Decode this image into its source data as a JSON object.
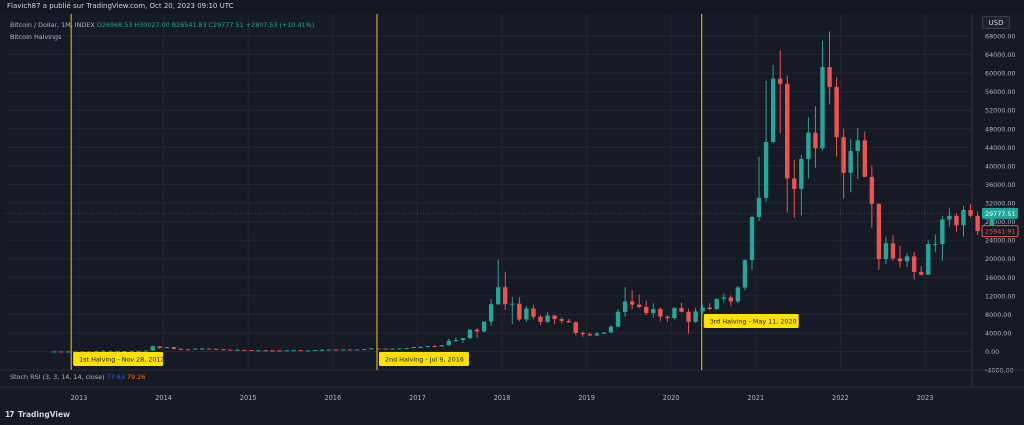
{
  "header": {
    "publisher_line": "Flavich87 a publié sur TradingView.com, Oct 20, 2023 09:10 UTC"
  },
  "legend": {
    "symbol": "Bitcoin / Dollar, 1M, INDEX",
    "open_label": "O",
    "open": "26968.53",
    "high_label": "H",
    "high": "30027.00",
    "low_label": "B",
    "low": "26541.83",
    "close_label": "C",
    "close": "29777.51",
    "change": "+2807.53 (+10.41%)",
    "indicator": "Bitcoin Halvings"
  },
  "currency": "USD",
  "stoch": {
    "label": "Stoch RSI (3, 3, 14, 14, close)",
    "k": "77.63",
    "d": "79.26"
  },
  "branding": "TradingView",
  "colors": {
    "background": "#161a25",
    "up": "#26a69a",
    "down": "#ef5350",
    "halving_line": "#f5c518",
    "halving_label_bg": "#ffe100",
    "grid": "#232733",
    "price_badge_up": "#26a69a",
    "price_badge_down": "#ef5350"
  },
  "chart_data": {
    "type": "candlestick",
    "price_labels": [
      "68000.00",
      "64000.00",
      "60000.00",
      "56000.00",
      "52000.00",
      "48000.00",
      "44000.00",
      "40000.00",
      "36000.00",
      "32000.00",
      "28000.00",
      "24000.00",
      "20000.00",
      "16000.00",
      "12000.00",
      "8000.00",
      "4000.00",
      "0.00",
      "-4000.00"
    ],
    "price_range": [
      -4000,
      70000
    ],
    "x_labels": [
      "2013",
      "2014",
      "2015",
      "2016",
      "2017",
      "2018",
      "2019",
      "2020",
      "2021",
      "2022",
      "2023"
    ],
    "last_price": "29777.51",
    "secondary_price": "25941.91",
    "halvings": [
      {
        "label": "1st Halving - Nov 28, 2012",
        "date": "2012-11-28"
      },
      {
        "label": "2nd Halving - Jul 9, 2016",
        "date": "2016-07-09"
      },
      {
        "label": "3rd Halving - May 11, 2020",
        "date": "2020-05-11"
      }
    ],
    "candles": [
      {
        "date": "2012-09",
        "o": 10,
        "h": 13,
        "l": 9,
        "c": 12
      },
      {
        "date": "2012-10",
        "o": 12,
        "h": 13,
        "l": 10,
        "c": 11
      },
      {
        "date": "2012-11",
        "o": 11,
        "h": 13,
        "l": 10,
        "c": 12
      },
      {
        "date": "2012-12",
        "o": 12,
        "h": 14,
        "l": 12,
        "c": 13
      },
      {
        "date": "2013-01",
        "o": 13,
        "h": 21,
        "l": 13,
        "c": 20
      },
      {
        "date": "2013-02",
        "o": 20,
        "h": 35,
        "l": 20,
        "c": 33
      },
      {
        "date": "2013-03",
        "o": 33,
        "h": 95,
        "l": 33,
        "c": 93
      },
      {
        "date": "2013-04",
        "o": 93,
        "h": 266,
        "l": 50,
        "c": 139
      },
      {
        "date": "2013-05",
        "o": 139,
        "h": 140,
        "l": 82,
        "c": 128
      },
      {
        "date": "2013-06",
        "o": 128,
        "h": 130,
        "l": 88,
        "c": 97
      },
      {
        "date": "2013-07",
        "o": 97,
        "h": 110,
        "l": 66,
        "c": 106
      },
      {
        "date": "2013-08",
        "o": 106,
        "h": 136,
        "l": 100,
        "c": 135
      },
      {
        "date": "2013-09",
        "o": 135,
        "h": 145,
        "l": 110,
        "c": 133
      },
      {
        "date": "2013-10",
        "o": 133,
        "h": 210,
        "l": 110,
        "c": 205
      },
      {
        "date": "2013-11",
        "o": 205,
        "h": 1242,
        "l": 205,
        "c": 1120
      },
      {
        "date": "2013-12",
        "o": 1120,
        "h": 1150,
        "l": 520,
        "c": 800
      },
      {
        "date": "2014-01",
        "o": 800,
        "h": 1000,
        "l": 750,
        "c": 935
      },
      {
        "date": "2014-02",
        "o": 935,
        "h": 950,
        "l": 420,
        "c": 570
      },
      {
        "date": "2014-03",
        "o": 570,
        "h": 700,
        "l": 440,
        "c": 460
      },
      {
        "date": "2014-04",
        "o": 460,
        "h": 520,
        "l": 340,
        "c": 445
      },
      {
        "date": "2014-05",
        "o": 445,
        "h": 630,
        "l": 420,
        "c": 630
      },
      {
        "date": "2014-06",
        "o": 630,
        "h": 680,
        "l": 540,
        "c": 640
      },
      {
        "date": "2014-07",
        "o": 640,
        "h": 660,
        "l": 570,
        "c": 585
      },
      {
        "date": "2014-08",
        "o": 585,
        "h": 600,
        "l": 450,
        "c": 480
      },
      {
        "date": "2014-09",
        "o": 480,
        "h": 490,
        "l": 350,
        "c": 390
      },
      {
        "date": "2014-10",
        "o": 390,
        "h": 420,
        "l": 280,
        "c": 340
      },
      {
        "date": "2014-11",
        "o": 340,
        "h": 460,
        "l": 320,
        "c": 375
      },
      {
        "date": "2014-12",
        "o": 375,
        "h": 400,
        "l": 300,
        "c": 320
      },
      {
        "date": "2015-01",
        "o": 320,
        "h": 320,
        "l": 160,
        "c": 217
      },
      {
        "date": "2015-02",
        "o": 217,
        "h": 270,
        "l": 200,
        "c": 254
      },
      {
        "date": "2015-03",
        "o": 254,
        "h": 300,
        "l": 235,
        "c": 244
      },
      {
        "date": "2015-04",
        "o": 244,
        "h": 260,
        "l": 215,
        "c": 236
      },
      {
        "date": "2015-05",
        "o": 236,
        "h": 250,
        "l": 225,
        "c": 230
      },
      {
        "date": "2015-06",
        "o": 230,
        "h": 270,
        "l": 220,
        "c": 263
      },
      {
        "date": "2015-07",
        "o": 263,
        "h": 320,
        "l": 255,
        "c": 284
      },
      {
        "date": "2015-08",
        "o": 284,
        "h": 290,
        "l": 200,
        "c": 230
      },
      {
        "date": "2015-09",
        "o": 230,
        "h": 245,
        "l": 225,
        "c": 236
      },
      {
        "date": "2015-10",
        "o": 236,
        "h": 330,
        "l": 235,
        "c": 314
      },
      {
        "date": "2015-11",
        "o": 314,
        "h": 500,
        "l": 300,
        "c": 378
      },
      {
        "date": "2015-12",
        "o": 378,
        "h": 470,
        "l": 350,
        "c": 430
      },
      {
        "date": "2016-01",
        "o": 430,
        "h": 460,
        "l": 350,
        "c": 368
      },
      {
        "date": "2016-02",
        "o": 368,
        "h": 440,
        "l": 365,
        "c": 437
      },
      {
        "date": "2016-03",
        "o": 437,
        "h": 440,
        "l": 400,
        "c": 416
      },
      {
        "date": "2016-04",
        "o": 416,
        "h": 470,
        "l": 415,
        "c": 448
      },
      {
        "date": "2016-05",
        "o": 448,
        "h": 550,
        "l": 440,
        "c": 530
      },
      {
        "date": "2016-06",
        "o": 530,
        "h": 780,
        "l": 520,
        "c": 673
      },
      {
        "date": "2016-07",
        "o": 673,
        "h": 680,
        "l": 610,
        "c": 624
      },
      {
        "date": "2016-08",
        "o": 624,
        "h": 630,
        "l": 480,
        "c": 573
      },
      {
        "date": "2016-09",
        "o": 573,
        "h": 620,
        "l": 570,
        "c": 609
      },
      {
        "date": "2016-10",
        "o": 609,
        "h": 720,
        "l": 600,
        "c": 700
      },
      {
        "date": "2016-11",
        "o": 700,
        "h": 750,
        "l": 690,
        "c": 745
      },
      {
        "date": "2016-12",
        "o": 745,
        "h": 975,
        "l": 740,
        "c": 960
      },
      {
        "date": "2017-01",
        "o": 960,
        "h": 1160,
        "l": 750,
        "c": 970
      },
      {
        "date": "2017-02",
        "o": 970,
        "h": 1200,
        "l": 920,
        "c": 1190
      },
      {
        "date": "2017-03",
        "o": 1190,
        "h": 1350,
        "l": 890,
        "c": 1080
      },
      {
        "date": "2017-04",
        "o": 1080,
        "h": 1360,
        "l": 1060,
        "c": 1350
      },
      {
        "date": "2017-05",
        "o": 1350,
        "h": 2750,
        "l": 1350,
        "c": 2300
      },
      {
        "date": "2017-06",
        "o": 2300,
        "h": 3000,
        "l": 2100,
        "c": 2480
      },
      {
        "date": "2017-07",
        "o": 2480,
        "h": 2950,
        "l": 1830,
        "c": 2870
      },
      {
        "date": "2017-08",
        "o": 2870,
        "h": 4750,
        "l": 2700,
        "c": 4700
      },
      {
        "date": "2017-09",
        "o": 4700,
        "h": 5000,
        "l": 2950,
        "c": 4340
      },
      {
        "date": "2017-10",
        "o": 4340,
        "h": 6450,
        "l": 4100,
        "c": 6450
      },
      {
        "date": "2017-11",
        "o": 6450,
        "h": 11400,
        "l": 5500,
        "c": 10200
      },
      {
        "date": "2017-12",
        "o": 10200,
        "h": 19800,
        "l": 10000,
        "c": 13850
      },
      {
        "date": "2018-01",
        "o": 13850,
        "h": 17200,
        "l": 9000,
        "c": 10200
      },
      {
        "date": "2018-02",
        "o": 10200,
        "h": 11800,
        "l": 5900,
        "c": 10300
      },
      {
        "date": "2018-03",
        "o": 10300,
        "h": 11700,
        "l": 6500,
        "c": 6900
      },
      {
        "date": "2018-04",
        "o": 6900,
        "h": 9800,
        "l": 6400,
        "c": 9250
      },
      {
        "date": "2018-05",
        "o": 9250,
        "h": 10000,
        "l": 7000,
        "c": 7500
      },
      {
        "date": "2018-06",
        "o": 7500,
        "h": 7800,
        "l": 5750,
        "c": 6400
      },
      {
        "date": "2018-07",
        "o": 6400,
        "h": 8500,
        "l": 6100,
        "c": 7750
      },
      {
        "date": "2018-08",
        "o": 7750,
        "h": 7800,
        "l": 5900,
        "c": 7000
      },
      {
        "date": "2018-09",
        "o": 7000,
        "h": 7400,
        "l": 6100,
        "c": 6600
      },
      {
        "date": "2018-10",
        "o": 6600,
        "h": 7000,
        "l": 6200,
        "c": 6300
      },
      {
        "date": "2018-11",
        "o": 6300,
        "h": 6500,
        "l": 3500,
        "c": 4000
      },
      {
        "date": "2018-12",
        "o": 4000,
        "h": 4300,
        "l": 3150,
        "c": 3750
      },
      {
        "date": "2019-01",
        "o": 3750,
        "h": 4100,
        "l": 3400,
        "c": 3450
      },
      {
        "date": "2019-02",
        "o": 3450,
        "h": 4200,
        "l": 3400,
        "c": 3850
      },
      {
        "date": "2019-03",
        "o": 3850,
        "h": 4150,
        "l": 3700,
        "c": 4100
      },
      {
        "date": "2019-04",
        "o": 4100,
        "h": 5600,
        "l": 4050,
        "c": 5350
      },
      {
        "date": "2019-05",
        "o": 5350,
        "h": 9100,
        "l": 5300,
        "c": 8550
      },
      {
        "date": "2019-06",
        "o": 8550,
        "h": 13900,
        "l": 7500,
        "c": 10800
      },
      {
        "date": "2019-07",
        "o": 10800,
        "h": 13200,
        "l": 9100,
        "c": 10100
      },
      {
        "date": "2019-08",
        "o": 10100,
        "h": 12300,
        "l": 9300,
        "c": 9600
      },
      {
        "date": "2019-09",
        "o": 9600,
        "h": 10900,
        "l": 7800,
        "c": 8300
      },
      {
        "date": "2019-10",
        "o": 8300,
        "h": 10400,
        "l": 7300,
        "c": 9150
      },
      {
        "date": "2019-11",
        "o": 9150,
        "h": 9500,
        "l": 6500,
        "c": 7550
      },
      {
        "date": "2019-12",
        "o": 7550,
        "h": 7750,
        "l": 6400,
        "c": 7200
      },
      {
        "date": "2020-01",
        "o": 7200,
        "h": 9600,
        "l": 6850,
        "c": 9350
      },
      {
        "date": "2020-02",
        "o": 9350,
        "h": 10500,
        "l": 8400,
        "c": 8550
      },
      {
        "date": "2020-03",
        "o": 8550,
        "h": 9200,
        "l": 3850,
        "c": 6400
      },
      {
        "date": "2020-04",
        "o": 6400,
        "h": 9450,
        "l": 6150,
        "c": 8650
      },
      {
        "date": "2020-05",
        "o": 8650,
        "h": 10050,
        "l": 8100,
        "c": 9450
      },
      {
        "date": "2020-06",
        "o": 9450,
        "h": 10400,
        "l": 8900,
        "c": 9150
      },
      {
        "date": "2020-07",
        "o": 9150,
        "h": 11450,
        "l": 8950,
        "c": 11350
      },
      {
        "date": "2020-08",
        "o": 11350,
        "h": 12480,
        "l": 10550,
        "c": 11650
      },
      {
        "date": "2020-09",
        "o": 11650,
        "h": 12100,
        "l": 9850,
        "c": 10800
      },
      {
        "date": "2020-10",
        "o": 10800,
        "h": 14100,
        "l": 10450,
        "c": 13800
      },
      {
        "date": "2020-11",
        "o": 13800,
        "h": 19900,
        "l": 13200,
        "c": 19700
      },
      {
        "date": "2020-12",
        "o": 19700,
        "h": 29300,
        "l": 17600,
        "c": 28990
      },
      {
        "date": "2021-01",
        "o": 28990,
        "h": 41950,
        "l": 28150,
        "c": 33100
      },
      {
        "date": "2021-02",
        "o": 33100,
        "h": 58350,
        "l": 32300,
        "c": 45150
      },
      {
        "date": "2021-03",
        "o": 45150,
        "h": 61780,
        "l": 45000,
        "c": 58800
      },
      {
        "date": "2021-04",
        "o": 58800,
        "h": 64850,
        "l": 47050,
        "c": 57700
      },
      {
        "date": "2021-05",
        "o": 57700,
        "h": 59500,
        "l": 30000,
        "c": 37300
      },
      {
        "date": "2021-06",
        "o": 37300,
        "h": 41300,
        "l": 28800,
        "c": 35050
      },
      {
        "date": "2021-07",
        "o": 35050,
        "h": 42400,
        "l": 29300,
        "c": 41500
      },
      {
        "date": "2021-08",
        "o": 41500,
        "h": 50500,
        "l": 37300,
        "c": 47150
      },
      {
        "date": "2021-09",
        "o": 47150,
        "h": 52900,
        "l": 39600,
        "c": 43800
      },
      {
        "date": "2021-10",
        "o": 43800,
        "h": 67000,
        "l": 43300,
        "c": 61300
      },
      {
        "date": "2021-11",
        "o": 61300,
        "h": 69000,
        "l": 53250,
        "c": 57000
      },
      {
        "date": "2021-12",
        "o": 57000,
        "h": 59100,
        "l": 42000,
        "c": 46200
      },
      {
        "date": "2022-01",
        "o": 46200,
        "h": 48000,
        "l": 32950,
        "c": 38500
      },
      {
        "date": "2022-02",
        "o": 38500,
        "h": 45850,
        "l": 34300,
        "c": 43200
      },
      {
        "date": "2022-03",
        "o": 43200,
        "h": 48200,
        "l": 37200,
        "c": 45500
      },
      {
        "date": "2022-04",
        "o": 45500,
        "h": 47450,
        "l": 37600,
        "c": 37650
      },
      {
        "date": "2022-05",
        "o": 37650,
        "h": 40050,
        "l": 26700,
        "c": 31800
      },
      {
        "date": "2022-06",
        "o": 31800,
        "h": 31950,
        "l": 17600,
        "c": 19950
      },
      {
        "date": "2022-07",
        "o": 19950,
        "h": 24650,
        "l": 18800,
        "c": 23300
      },
      {
        "date": "2022-08",
        "o": 23300,
        "h": 25200,
        "l": 19550,
        "c": 20050
      },
      {
        "date": "2022-09",
        "o": 20050,
        "h": 22800,
        "l": 18150,
        "c": 19450
      },
      {
        "date": "2022-10",
        "o": 19450,
        "h": 21100,
        "l": 18200,
        "c": 20500
      },
      {
        "date": "2022-11",
        "o": 20500,
        "h": 21450,
        "l": 15500,
        "c": 17150
      },
      {
        "date": "2022-12",
        "o": 17150,
        "h": 18400,
        "l": 16300,
        "c": 16550
      },
      {
        "date": "2023-01",
        "o": 16550,
        "h": 23950,
        "l": 16500,
        "c": 23150
      },
      {
        "date": "2023-02",
        "o": 23150,
        "h": 25250,
        "l": 21350,
        "c": 23150
      },
      {
        "date": "2023-03",
        "o": 23150,
        "h": 29200,
        "l": 19550,
        "c": 28450
      },
      {
        "date": "2023-04",
        "o": 28450,
        "h": 31000,
        "l": 26950,
        "c": 29250
      },
      {
        "date": "2023-05",
        "o": 29250,
        "h": 29800,
        "l": 25800,
        "c": 27200
      },
      {
        "date": "2023-06",
        "o": 27200,
        "h": 31400,
        "l": 24750,
        "c": 30500
      },
      {
        "date": "2023-07",
        "o": 30500,
        "h": 31800,
        "l": 28850,
        "c": 29250
      },
      {
        "date": "2023-08",
        "o": 29250,
        "h": 30200,
        "l": 25150,
        "c": 25950
      },
      {
        "date": "2023-09",
        "o": 25950,
        "h": 27450,
        "l": 24900,
        "c": 26950
      },
      {
        "date": "2023-10",
        "o": 26950,
        "h": 30000,
        "l": 26550,
        "c": 29777
      }
    ]
  }
}
